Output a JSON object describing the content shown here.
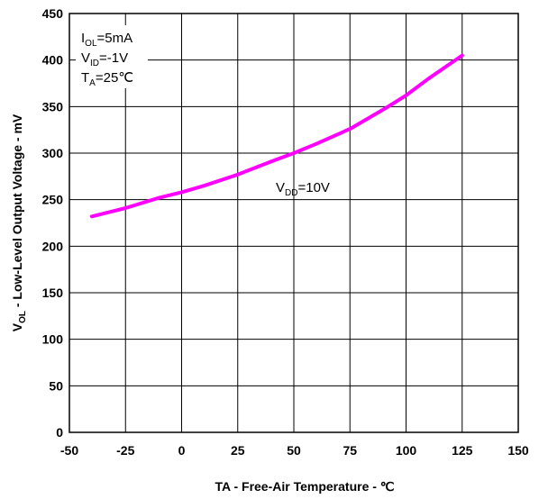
{
  "chart_data": {
    "type": "line",
    "xlabel": "TA - Free-Air Temperature - ℃",
    "ylabel_main": "V",
    "ylabel_sub": "OL",
    "ylabel_rest": " - Low-Level Output Voltage - mV",
    "xlim": [
      -50,
      150
    ],
    "ylim": [
      0,
      450
    ],
    "x_ticks": [
      -50,
      -25,
      0,
      25,
      50,
      75,
      100,
      125,
      150
    ],
    "y_ticks": [
      0,
      50,
      100,
      150,
      200,
      250,
      300,
      350,
      400,
      450
    ],
    "grid": true,
    "line_color": "#ff00ff",
    "series": [
      {
        "name": "VDD=10V",
        "x": [
          -40,
          -25,
          -10,
          0,
          10,
          25,
          40,
          50,
          60,
          75,
          90,
          100,
          110,
          125
        ],
        "y": [
          232,
          241,
          252,
          258,
          265,
          277,
          291,
          300,
          310,
          326,
          347,
          362,
          380,
          405
        ]
      }
    ],
    "conditions": [
      {
        "main": "I",
        "sub": "OL",
        "rest": "=5mA"
      },
      {
        "main": "V",
        "sub": "ID",
        "rest": "=-1V"
      },
      {
        "main": "T",
        "sub": "A",
        "rest": "=25℃"
      }
    ],
    "series_label": {
      "main": "V",
      "sub": "DD",
      "rest": "=10V"
    }
  }
}
